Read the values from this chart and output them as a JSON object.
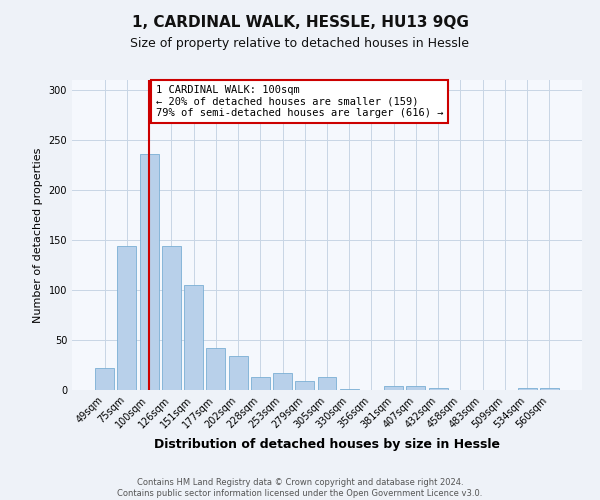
{
  "title": "1, CARDINAL WALK, HESSLE, HU13 9QG",
  "subtitle": "Size of property relative to detached houses in Hessle",
  "xlabel": "Distribution of detached houses by size in Hessle",
  "ylabel": "Number of detached properties",
  "bar_labels": [
    "49sqm",
    "75sqm",
    "100sqm",
    "126sqm",
    "151sqm",
    "177sqm",
    "202sqm",
    "228sqm",
    "253sqm",
    "279sqm",
    "305sqm",
    "330sqm",
    "356sqm",
    "381sqm",
    "407sqm",
    "432sqm",
    "458sqm",
    "483sqm",
    "509sqm",
    "534sqm",
    "560sqm"
  ],
  "bar_values": [
    22,
    144,
    236,
    144,
    105,
    42,
    34,
    13,
    17,
    9,
    13,
    1,
    0,
    4,
    4,
    2,
    0,
    0,
    0,
    2,
    2
  ],
  "bar_color": "#b8d0ea",
  "bar_edgecolor": "#7aafd4",
  "vline_x": 2,
  "vline_color": "#cc0000",
  "annotation_text": "1 CARDINAL WALK: 100sqm\n← 20% of detached houses are smaller (159)\n79% of semi-detached houses are larger (616) →",
  "annotation_box_edgecolor": "#cc0000",
  "annotation_fontsize": 7.5,
  "footer_text": "Contains HM Land Registry data © Crown copyright and database right 2024.\nContains public sector information licensed under the Open Government Licence v3.0.",
  "ylim": [
    0,
    310
  ],
  "yticks": [
    0,
    50,
    100,
    150,
    200,
    250,
    300
  ],
  "bg_color": "#eef2f8",
  "plot_bg_color": "#f5f8fd",
  "grid_color": "#c8d5e5",
  "title_fontsize": 11,
  "subtitle_fontsize": 9,
  "ylabel_fontsize": 8,
  "xlabel_fontsize": 9,
  "tick_fontsize": 7
}
